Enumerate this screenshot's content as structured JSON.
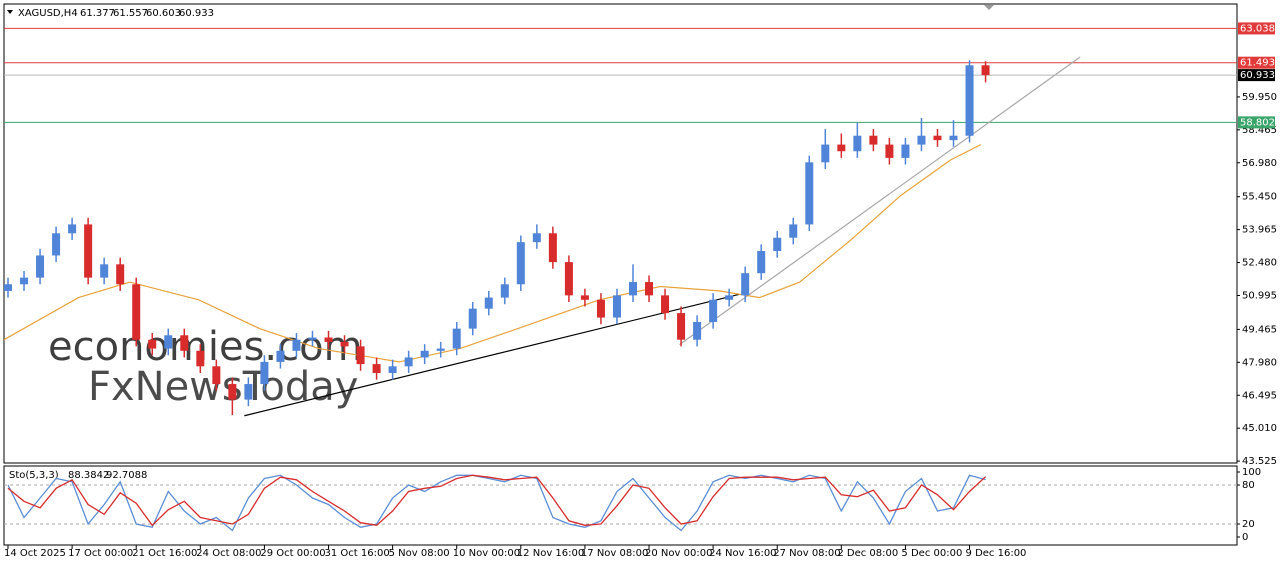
{
  "chart_data": {
    "type": "candlestick",
    "title": "XAGUSD,H4",
    "up_color": "#4f84d8",
    "down_color": "#d82b2b",
    "open": [
      51.2,
      51.5,
      51.8,
      52.8,
      53.8,
      54.2,
      51.8,
      52.4,
      51.5,
      49.0,
      48.6,
      49.2,
      48.5,
      47.8,
      47.0,
      46.3,
      47.0,
      48.0,
      48.5,
      49.0,
      49.1,
      48.9,
      48.7,
      47.9,
      47.5,
      47.8,
      48.2,
      48.5,
      48.6,
      49.5,
      50.4,
      50.9,
      51.5,
      53.4,
      53.8,
      52.5,
      51.0,
      50.8,
      50.0,
      51.0,
      51.6,
      51.0,
      50.2,
      49.0,
      49.8,
      50.8,
      51.0,
      52.0,
      53.0,
      53.6,
      54.2,
      57.0,
      57.8,
      57.5,
      58.2,
      57.8,
      57.2,
      57.8,
      58.2,
      58.0,
      58.2,
      61.377
    ],
    "high": [
      51.8,
      52.1,
      53.1,
      54.1,
      54.5,
      54.5,
      52.7,
      52.7,
      51.8,
      49.3,
      49.5,
      49.5,
      48.8,
      48.1,
      47.3,
      47.3,
      48.3,
      48.8,
      49.3,
      49.4,
      49.4,
      49.2,
      49.0,
      48.2,
      48.1,
      48.5,
      48.8,
      48.9,
      49.8,
      50.7,
      51.2,
      51.8,
      53.7,
      54.2,
      54.1,
      52.8,
      51.3,
      51.1,
      51.3,
      52.4,
      51.9,
      51.3,
      50.5,
      50.1,
      51.1,
      51.3,
      52.3,
      53.3,
      53.9,
      54.5,
      57.3,
      58.5,
      58.3,
      58.8,
      58.5,
      58.1,
      58.1,
      59.0,
      58.5,
      58.9,
      61.6,
      61.557
    ],
    "low": [
      50.9,
      51.2,
      51.5,
      52.5,
      53.5,
      51.5,
      51.5,
      51.2,
      48.7,
      48.3,
      48.3,
      48.2,
      47.5,
      46.7,
      45.6,
      46.0,
      46.7,
      47.7,
      48.2,
      48.7,
      48.6,
      48.4,
      47.6,
      47.2,
      47.2,
      47.5,
      47.9,
      48.2,
      48.3,
      49.2,
      50.1,
      50.6,
      51.2,
      53.1,
      52.2,
      50.7,
      50.5,
      49.7,
      49.7,
      50.7,
      50.7,
      49.9,
      48.7,
      48.7,
      49.5,
      50.5,
      50.7,
      51.7,
      52.7,
      53.3,
      53.9,
      56.7,
      57.2,
      57.2,
      57.5,
      56.9,
      56.9,
      57.5,
      57.7,
      57.7,
      57.9,
      60.603
    ],
    "close": [
      51.5,
      51.8,
      52.8,
      53.8,
      54.2,
      51.8,
      52.4,
      51.5,
      49.0,
      48.6,
      49.2,
      48.5,
      47.8,
      47.0,
      46.3,
      47.0,
      48.0,
      48.5,
      49.0,
      49.1,
      48.9,
      48.7,
      47.9,
      47.5,
      47.8,
      48.2,
      48.5,
      48.6,
      49.5,
      50.4,
      50.9,
      51.5,
      53.4,
      53.8,
      52.5,
      51.0,
      50.8,
      50.0,
      51.0,
      51.6,
      51.0,
      50.2,
      49.0,
      49.8,
      50.8,
      51.0,
      52.0,
      53.0,
      53.6,
      54.2,
      57.0,
      57.8,
      57.5,
      58.2,
      57.8,
      57.2,
      57.8,
      58.2,
      58.0,
      58.2,
      61.377,
      60.933
    ],
    "ma": {
      "color": "#e8a23a",
      "x": [
        -0.25,
        4.4,
        7.6,
        11.9,
        15.7,
        19.4,
        24.4,
        28.2,
        32.6,
        36.9,
        40.7,
        44.4,
        46.9,
        49.4,
        52.6,
        55.7,
        58.8,
        60.7
      ],
      "values": [
        49.0,
        50.9,
        51.6,
        50.8,
        49.5,
        48.6,
        48.0,
        48.6,
        49.7,
        50.8,
        51.4,
        51.2,
        50.9,
        51.6,
        53.5,
        55.5,
        57.1,
        57.8
      ]
    },
    "trendlines": [
      {
        "color": "#000000",
        "x": [
          14.75,
          45.6
        ],
        "values": [
          45.57,
          51.04
        ]
      },
      {
        "color": "#a8a8a8",
        "x": [
          41.9,
          66.9
        ],
        "values": [
          48.78,
          61.75
        ]
      }
    ],
    "levels": [
      {
        "value": 63.038,
        "color": "#e03a3a",
        "label_color": "#e03a3a"
      },
      {
        "value": 61.493,
        "color": "#e03a3a",
        "label_color": "#e03a3a"
      },
      {
        "value": 60.933,
        "color": "#b8b8b8",
        "label_color": "#000000"
      },
      {
        "value": 58.802,
        "color": "#3aa56a",
        "label_color": "#3aa56a"
      }
    ],
    "xlim": [
      -0.25,
      76.69
    ],
    "ylim": [
      43.44,
      64.14
    ],
    "yticks": [
      {
        "value": 59.95,
        "label": "59.950"
      },
      {
        "value": 58.465,
        "label": "58.465"
      },
      {
        "value": 56.98,
        "label": "56.980"
      },
      {
        "value": 55.45,
        "label": "55.450"
      },
      {
        "value": 53.965,
        "label": "53.965"
      },
      {
        "value": 52.48,
        "label": "52.480"
      },
      {
        "value": 50.995,
        "label": "50.995"
      },
      {
        "value": 49.465,
        "label": "49.465"
      },
      {
        "value": 47.98,
        "label": "47.980"
      },
      {
        "value": 46.495,
        "label": "46.495"
      },
      {
        "value": 45.01,
        "label": "45.010"
      },
      {
        "value": 43.525,
        "label": "43.525"
      }
    ],
    "xticks": [
      {
        "value": 0,
        "label": "14 Oct 2025"
      },
      {
        "value": 4,
        "label": "17 Oct 00:00"
      },
      {
        "value": 8,
        "label": "21 Oct 16:00"
      },
      {
        "value": 12,
        "label": "24 Oct 08:00"
      },
      {
        "value": 16,
        "label": "29 Oct 00:00"
      },
      {
        "value": 20,
        "label": "31 Oct 16:00"
      },
      {
        "value": 24,
        "label": "5 Nov 08:00"
      },
      {
        "value": 28,
        "label": "10 Nov 00:00"
      },
      {
        "value": 32,
        "label": "12 Nov 16:00"
      },
      {
        "value": 36,
        "label": "17 Nov 08:00"
      },
      {
        "value": 40,
        "label": "20 Nov 00:00"
      },
      {
        "value": 44,
        "label": "24 Nov 16:00"
      },
      {
        "value": 48,
        "label": "27 Nov 08:00"
      },
      {
        "value": 52,
        "label": "2 Dec 08:00"
      },
      {
        "value": 56,
        "label": "5 Dec 00:00"
      },
      {
        "value": 60,
        "label": "9 Dec 16:00"
      }
    ],
    "watermark": [
      "economies.com",
      "FxNewsToday"
    ],
    "stochastic": {
      "label": "Sto(5,3,3)",
      "k_color": "#5b8ed6",
      "d_color": "#d82b2b",
      "ylim": [
        0,
        100
      ],
      "yticks": [
        0,
        20,
        80,
        100
      ],
      "levels": [
        20,
        80
      ],
      "k": [
        80,
        30,
        60,
        90,
        85,
        20,
        50,
        85,
        20,
        15,
        70,
        40,
        20,
        30,
        10,
        60,
        90,
        95,
        80,
        60,
        50,
        30,
        15,
        20,
        60,
        80,
        70,
        85,
        95,
        95,
        90,
        85,
        95,
        90,
        30,
        20,
        15,
        25,
        70,
        90,
        60,
        30,
        10,
        40,
        85,
        95,
        90,
        95,
        90,
        85,
        95,
        90,
        40,
        85,
        60,
        20,
        70,
        90,
        40,
        45,
        95,
        88.3842
      ],
      "d": [
        75,
        55,
        45,
        75,
        88,
        50,
        35,
        68,
        52,
        18,
        42,
        55,
        30,
        25,
        20,
        35,
        75,
        92,
        88,
        70,
        55,
        40,
        22,
        18,
        40,
        70,
        75,
        78,
        90,
        95,
        92,
        88,
        90,
        92,
        60,
        25,
        18,
        20,
        48,
        80,
        75,
        45,
        20,
        25,
        62,
        90,
        92,
        92,
        92,
        88,
        90,
        92,
        65,
        62,
        72,
        40,
        45,
        80,
        65,
        42,
        70,
        92.7088
      ]
    }
  }
}
